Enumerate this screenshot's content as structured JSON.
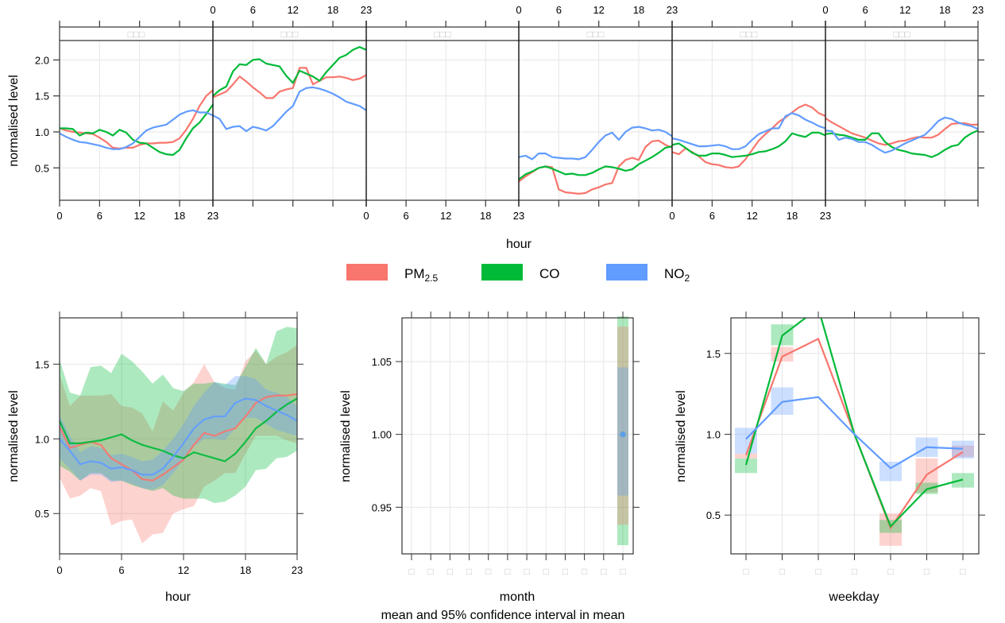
{
  "colors": {
    "PM2.5": "#F8766D",
    "CO": "#00BA38",
    "NO2": "#619CFF",
    "grid": "#e6e6e6",
    "frame": "#333333",
    "strip_text": "#c8c8c8"
  },
  "legend": {
    "items": [
      {
        "key": "PM2.5",
        "label_main": "PM",
        "label_sub": "2.5"
      },
      {
        "key": "CO",
        "label_main": "CO",
        "label_sub": ""
      },
      {
        "key": "NO2",
        "label_main": "NO",
        "label_sub": "2"
      }
    ]
  },
  "footer": {
    "caption": "mean and 95% confidence interval in mean"
  },
  "chart_data": [
    {
      "id": "hour_by_weekday",
      "type": "line",
      "title": "",
      "xlabel": "hour",
      "ylabel": "normalised level",
      "ylim": [
        0.05,
        2.27
      ],
      "yticks": [
        0.5,
        1.0,
        1.5,
        2.0
      ],
      "ytick_labels": [
        "0.5",
        "1.0",
        "1.5",
        "2.0"
      ],
      "xticks": [
        0,
        6,
        12,
        18,
        23
      ],
      "xtick_labels": [
        "0",
        "6",
        "12",
        "18",
        "23"
      ],
      "panel_strips": [
        "□□□",
        "□□□",
        "□□□",
        "□□□",
        "□□□",
        "□□□"
      ],
      "top_axis_panels": [
        1,
        3,
        5
      ],
      "bottom_axis_panels": [
        0,
        2,
        4
      ],
      "grid": true,
      "panels": [
        {
          "series": [
            {
              "name": "PM2.5",
              "values": [
                1.05,
                1.02,
                1.0,
                0.99,
                0.98,
                0.97,
                0.92,
                0.86,
                0.78,
                0.77,
                0.78,
                0.78,
                0.82,
                0.84,
                0.84,
                0.85,
                0.85,
                0.86,
                0.91,
                1.03,
                1.18,
                1.36,
                1.5,
                1.58
              ]
            },
            {
              "name": "CO",
              "values": [
                1.05,
                1.05,
                1.04,
                0.95,
                0.99,
                0.98,
                1.03,
                1.0,
                0.95,
                1.03,
                0.99,
                0.89,
                0.85,
                0.84,
                0.78,
                0.72,
                0.69,
                0.68,
                0.75,
                0.91,
                1.05,
                1.13,
                1.25,
                1.38
              ]
            },
            {
              "name": "NO2",
              "values": [
                0.98,
                0.93,
                0.89,
                0.86,
                0.85,
                0.83,
                0.81,
                0.78,
                0.76,
                0.76,
                0.79,
                0.84,
                0.93,
                1.02,
                1.06,
                1.08,
                1.1,
                1.17,
                1.24,
                1.28,
                1.3,
                1.27,
                1.27,
                1.23
              ]
            }
          ]
        },
        {
          "series": [
            {
              "name": "PM2.5",
              "values": [
                1.48,
                1.52,
                1.56,
                1.66,
                1.77,
                1.7,
                1.62,
                1.55,
                1.47,
                1.47,
                1.56,
                1.59,
                1.61,
                1.89,
                1.89,
                1.66,
                1.71,
                1.76,
                1.76,
                1.77,
                1.75,
                1.72,
                1.74,
                1.79
              ]
            },
            {
              "name": "CO",
              "values": [
                1.5,
                1.58,
                1.63,
                1.84,
                1.94,
                1.93,
                2.0,
                2.01,
                1.95,
                1.93,
                1.91,
                1.78,
                1.68,
                1.85,
                1.81,
                1.77,
                1.71,
                1.83,
                1.93,
                2.03,
                2.07,
                2.14,
                2.18,
                2.14
              ]
            },
            {
              "name": "NO2",
              "values": [
                1.23,
                1.18,
                1.04,
                1.07,
                1.08,
                1.01,
                1.07,
                1.05,
                1.02,
                1.08,
                1.18,
                1.28,
                1.36,
                1.56,
                1.61,
                1.62,
                1.6,
                1.57,
                1.53,
                1.48,
                1.42,
                1.39,
                1.36,
                1.3
              ]
            }
          ]
        },
        {
          "series": [
            {
              "name": "PM2.5",
              "values": []
            },
            {
              "name": "CO",
              "values": []
            },
            {
              "name": "NO2",
              "values": []
            }
          ]
        },
        {
          "series": [
            {
              "name": "PM2.5",
              "values": [
                0.31,
                0.38,
                0.44,
                0.5,
                0.52,
                0.51,
                0.2,
                0.16,
                0.15,
                0.14,
                0.15,
                0.2,
                0.23,
                0.27,
                0.29,
                0.52,
                0.61,
                0.64,
                0.61,
                0.79,
                0.87,
                0.88,
                0.82,
                0.78
              ]
            },
            {
              "name": "CO",
              "values": [
                0.34,
                0.41,
                0.45,
                0.5,
                0.52,
                0.49,
                0.45,
                0.41,
                0.42,
                0.4,
                0.4,
                0.43,
                0.48,
                0.52,
                0.51,
                0.49,
                0.46,
                0.48,
                0.55,
                0.6,
                0.65,
                0.71,
                0.78,
                0.8
              ]
            },
            {
              "name": "NO2",
              "values": [
                0.65,
                0.67,
                0.62,
                0.7,
                0.7,
                0.65,
                0.64,
                0.63,
                0.63,
                0.62,
                0.65,
                0.75,
                0.86,
                0.95,
                0.99,
                0.89,
                1.0,
                1.06,
                1.07,
                1.05,
                1.02,
                1.03,
                1.0,
                0.94
              ]
            }
          ]
        },
        {
          "series": [
            {
              "name": "PM2.5",
              "values": [
                0.72,
                0.69,
                0.77,
                0.72,
                0.66,
                0.58,
                0.55,
                0.54,
                0.51,
                0.5,
                0.52,
                0.62,
                0.75,
                0.88,
                0.97,
                1.05,
                1.14,
                1.2,
                1.27,
                1.34,
                1.38,
                1.34,
                1.26,
                1.22
              ]
            },
            {
              "name": "CO",
              "values": [
                0.82,
                0.84,
                0.78,
                0.71,
                0.67,
                0.67,
                0.7,
                0.7,
                0.68,
                0.65,
                0.66,
                0.67,
                0.69,
                0.72,
                0.73,
                0.76,
                0.8,
                0.87,
                0.98,
                0.95,
                0.93,
                0.99,
                0.99,
                0.95
              ]
            },
            {
              "name": "NO2",
              "values": [
                0.91,
                0.89,
                0.86,
                0.83,
                0.8,
                0.8,
                0.81,
                0.82,
                0.8,
                0.76,
                0.76,
                0.8,
                0.89,
                0.97,
                1.01,
                1.05,
                1.05,
                1.22,
                1.26,
                1.23,
                1.17,
                1.13,
                1.08,
                1.05
              ]
            }
          ]
        },
        {
          "series": [
            {
              "name": "PM2.5",
              "values": [
                1.19,
                1.13,
                1.08,
                1.03,
                0.98,
                0.95,
                0.92,
                0.88,
                0.84,
                0.82,
                0.84,
                0.87,
                0.88,
                0.91,
                0.93,
                0.92,
                0.92,
                0.96,
                1.04,
                1.11,
                1.12,
                1.12,
                1.1,
                1.1
              ]
            },
            {
              "name": "CO",
              "values": [
                0.97,
                0.98,
                0.96,
                0.95,
                0.92,
                0.89,
                0.89,
                0.98,
                0.98,
                0.86,
                0.79,
                0.75,
                0.73,
                0.7,
                0.69,
                0.68,
                0.65,
                0.69,
                0.75,
                0.8,
                0.82,
                0.92,
                0.98,
                1.02
              ]
            },
            {
              "name": "NO2",
              "values": [
                1.02,
                1.01,
                0.89,
                0.92,
                0.9,
                0.86,
                0.86,
                0.82,
                0.76,
                0.71,
                0.74,
                0.79,
                0.84,
                0.88,
                0.92,
                0.96,
                1.05,
                1.15,
                1.2,
                1.18,
                1.13,
                1.1,
                1.08,
                1.04
              ]
            }
          ]
        }
      ]
    },
    {
      "id": "hour",
      "type": "area",
      "xlabel": "hour",
      "ylabel": "normalised level",
      "x": [
        0,
        1,
        2,
        3,
        4,
        5,
        6,
        7,
        8,
        9,
        10,
        11,
        12,
        13,
        14,
        15,
        16,
        17,
        18,
        19,
        20,
        21,
        22,
        23
      ],
      "xlim": [
        0,
        23
      ],
      "xticks": [
        0,
        6,
        12,
        18,
        23
      ],
      "xtick_labels": [
        "0",
        "6",
        "12",
        "18",
        "23"
      ],
      "ylim": [
        0.23,
        1.81
      ],
      "yticks": [
        0.5,
        1.0,
        1.5
      ],
      "ytick_labels": [
        "0.5",
        "1.0",
        "1.5"
      ],
      "grid": true,
      "series": [
        {
          "name": "PM2.5",
          "mean": [
            1.08,
            0.94,
            0.96,
            0.98,
            0.96,
            0.87,
            0.83,
            0.79,
            0.73,
            0.72,
            0.76,
            0.81,
            0.86,
            0.96,
            1.04,
            1.02,
            1.05,
            1.07,
            1.15,
            1.24,
            1.28,
            1.29,
            1.29,
            1.3
          ],
          "lower": [
            0.74,
            0.6,
            0.62,
            0.67,
            0.65,
            0.42,
            0.45,
            0.46,
            0.3,
            0.36,
            0.37,
            0.5,
            0.53,
            0.55,
            0.68,
            0.72,
            0.77,
            0.77,
            0.9,
            1.02,
            1.02,
            1.02,
            0.99,
            0.97
          ],
          "upper": [
            1.43,
            1.22,
            1.29,
            1.29,
            1.29,
            1.3,
            1.22,
            1.21,
            1.17,
            1.05,
            1.25,
            1.19,
            1.31,
            1.38,
            1.5,
            1.38,
            1.34,
            1.33,
            1.52,
            1.59,
            1.5,
            1.55,
            1.58,
            1.63
          ]
        },
        {
          "name": "CO",
          "mean": [
            1.12,
            0.97,
            0.97,
            0.98,
            0.99,
            1.01,
            1.03,
            0.99,
            0.96,
            0.94,
            0.92,
            0.89,
            0.87,
            0.91,
            0.89,
            0.87,
            0.85,
            0.9,
            0.98,
            1.07,
            1.12,
            1.18,
            1.23,
            1.27
          ],
          "lower": [
            0.82,
            0.78,
            0.72,
            0.77,
            0.77,
            0.72,
            0.72,
            0.69,
            0.67,
            0.65,
            0.67,
            0.62,
            0.6,
            0.6,
            0.6,
            0.57,
            0.58,
            0.62,
            0.68,
            0.79,
            0.8,
            0.87,
            0.88,
            0.92
          ],
          "upper": [
            1.53,
            1.31,
            1.29,
            1.48,
            1.49,
            1.44,
            1.57,
            1.52,
            1.45,
            1.37,
            1.43,
            1.34,
            1.32,
            1.37,
            1.37,
            1.38,
            1.37,
            1.36,
            1.48,
            1.61,
            1.5,
            1.72,
            1.75,
            1.74
          ]
        },
        {
          "name": "NO2",
          "mean": [
            1.0,
            0.92,
            0.83,
            0.85,
            0.84,
            0.8,
            0.81,
            0.79,
            0.76,
            0.76,
            0.8,
            0.88,
            0.97,
            1.07,
            1.13,
            1.15,
            1.15,
            1.24,
            1.27,
            1.26,
            1.22,
            1.19,
            1.16,
            1.12
          ],
          "lower": [
            0.87,
            0.8,
            0.72,
            0.76,
            0.76,
            0.71,
            0.72,
            0.7,
            0.67,
            0.66,
            0.69,
            0.77,
            0.86,
            0.95,
            1.0,
            1.0,
            0.99,
            1.07,
            1.14,
            1.14,
            1.1,
            1.06,
            1.04,
            1.02
          ],
          "upper": [
            1.16,
            1.02,
            0.91,
            0.95,
            0.94,
            0.89,
            0.9,
            0.88,
            0.85,
            0.86,
            0.92,
            1.0,
            1.1,
            1.22,
            1.31,
            1.38,
            1.36,
            1.42,
            1.42,
            1.4,
            1.33,
            1.31,
            1.28,
            1.22
          ]
        }
      ]
    },
    {
      "id": "month",
      "type": "scatter",
      "xlabel": "month",
      "ylabel": "normalised level",
      "categories": [
        "□",
        "□",
        "□",
        "□",
        "□",
        "□",
        "□",
        "□",
        "□",
        "□",
        "□",
        "□"
      ],
      "ylim": [
        0.918,
        1.08
      ],
      "yticks": [
        0.95,
        1.0,
        1.05
      ],
      "ytick_labels": [
        "0.95",
        "1.00",
        "1.05"
      ],
      "grid": true,
      "series": [
        {
          "name": "PM2.5",
          "category_index": 11,
          "mean": 1.0,
          "lower": 0.938,
          "upper": 1.074
        },
        {
          "name": "CO",
          "category_index": 11,
          "mean": 1.0,
          "lower": 0.924,
          "upper": 1.081
        },
        {
          "name": "NO2",
          "category_index": 11,
          "mean": 1.0,
          "lower": 0.958,
          "upper": 1.046
        }
      ]
    },
    {
      "id": "weekday",
      "type": "line",
      "xlabel": "weekday",
      "ylabel": "normalised level",
      "categories": [
        "□",
        "□",
        "□",
        "□",
        "□",
        "□",
        "□"
      ],
      "ylim": [
        0.26,
        1.72
      ],
      "yticks": [
        0.5,
        1.0,
        1.5
      ],
      "ytick_labels": [
        "0.5",
        "1.0",
        "1.5"
      ],
      "grid": true,
      "series": [
        {
          "name": "PM2.5",
          "mean": [
            0.87,
            1.48,
            1.59,
            1.0,
            0.42,
            0.75,
            0.89
          ],
          "lower": [
            0.85,
            1.45,
            null,
            null,
            0.31,
            0.64,
            0.86
          ],
          "upper": [
            0.88,
            1.54,
            null,
            null,
            0.51,
            0.85,
            0.93
          ]
        },
        {
          "name": "CO",
          "mean": [
            0.81,
            1.61,
            1.78,
            1.0,
            0.43,
            0.66,
            0.72
          ],
          "lower": [
            0.76,
            1.55,
            null,
            null,
            0.39,
            0.63,
            0.67
          ],
          "upper": [
            0.85,
            1.68,
            null,
            null,
            0.47,
            0.7,
            0.76
          ]
        },
        {
          "name": "NO2",
          "mean": [
            0.97,
            1.2,
            1.23,
            1.0,
            0.79,
            0.92,
            0.91
          ],
          "lower": [
            0.88,
            1.12,
            null,
            null,
            0.71,
            0.86,
            0.85
          ],
          "upper": [
            1.04,
            1.29,
            null,
            null,
            0.83,
            0.98,
            0.96
          ]
        }
      ]
    }
  ]
}
